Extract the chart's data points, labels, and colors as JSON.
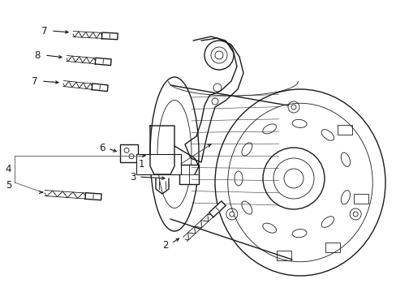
{
  "bg_color": "#ffffff",
  "line_color": "#1a1a1a",
  "label_color": "#1a1a1a",
  "lw": 1.0,
  "tlw": 0.6,
  "figsize": [
    4.89,
    3.6
  ],
  "dpi": 100,
  "xlim": [
    0,
    489
  ],
  "ylim": [
    0,
    360
  ]
}
